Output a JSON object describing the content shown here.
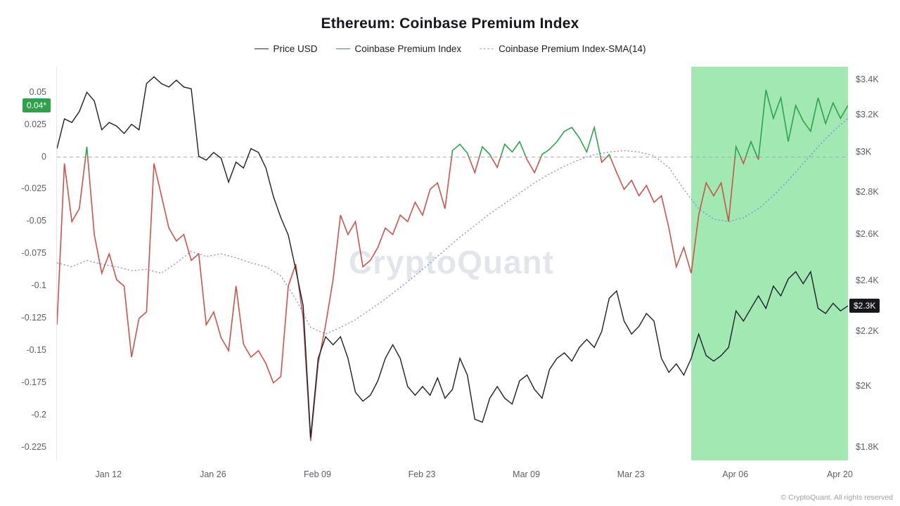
{
  "header": {
    "title": "Ethereum: Coinbase Premium Index"
  },
  "legend": {
    "items": [
      {
        "label": "Price USD",
        "color": "#2f3142",
        "dash": "solid"
      },
      {
        "label": "Coinbase Premium Index",
        "color": "#5d66d4",
        "dash": "solid"
      },
      {
        "label": "Coinbase Premium Index-SMA(14)",
        "color": "#a7abb3",
        "dash": "dashed"
      }
    ]
  },
  "watermark": "CryptoQuant",
  "footer": {
    "copyright": "© CryptoQuant. All rights reserved"
  },
  "left_axis": {
    "ticks": [
      {
        "label": "0.05",
        "value": 0.05
      },
      {
        "label": "0.025",
        "value": 0.025
      },
      {
        "label": "0",
        "value": 0
      },
      {
        "label": "-0.025",
        "value": -0.025
      },
      {
        "label": "-0.05",
        "value": -0.05
      },
      {
        "label": "-0.075",
        "value": -0.075
      },
      {
        "label": "-0.1",
        "value": -0.1
      },
      {
        "label": "-0.125",
        "value": -0.125
      },
      {
        "label": "-0.15",
        "value": -0.15
      },
      {
        "label": "-0.175",
        "value": -0.175
      },
      {
        "label": "-0.2",
        "value": -0.2
      },
      {
        "label": "-0.225",
        "value": -0.225
      }
    ],
    "badge": {
      "label": "0.04*",
      "value": 0.04,
      "bg": "#2fa14b",
      "fg": "#ffffff"
    }
  },
  "right_axis": {
    "ticks": [
      {
        "label": "$3.4K",
        "value": 3.4
      },
      {
        "label": "$3.2K",
        "value": 3.2
      },
      {
        "label": "$3K",
        "value": 3.0
      },
      {
        "label": "$2.8K",
        "value": 2.8
      },
      {
        "label": "$2.6K",
        "value": 2.6
      },
      {
        "label": "$2.4K",
        "value": 2.4
      },
      {
        "label": "$2.2K",
        "value": 2.2
      },
      {
        "label": "$2K",
        "value": 2.0
      },
      {
        "label": "$1.8K",
        "value": 1.8
      }
    ],
    "badge": {
      "label": "$2.3K",
      "value": 2.3,
      "bg": "#17181c",
      "fg": "#ffffff"
    }
  },
  "x_axis": {
    "ticks": [
      {
        "label": "Jan 12",
        "day": 7
      },
      {
        "label": "Jan 26",
        "day": 21
      },
      {
        "label": "Feb 09",
        "day": 35
      },
      {
        "label": "Feb 23",
        "day": 49
      },
      {
        "label": "Mar 09",
        "day": 63
      },
      {
        "label": "Mar 23",
        "day": 77
      },
      {
        "label": "Apr 06",
        "day": 91
      },
      {
        "label": "Apr 20",
        "day": 105
      }
    ]
  },
  "chart_data": {
    "type": "line",
    "title": "Ethereum: Coinbase Premium Index",
    "x_unit": "day index (0 = Jan 05, 106 = Apr 21)",
    "x_range": [
      0,
      106
    ],
    "left_ylim": [
      -0.235,
      0.07
    ],
    "right_ylim_kusd": [
      1.76,
      3.48
    ],
    "right_axis_scale": "log",
    "grid": false,
    "legend_position": "top-center",
    "highlight_region": {
      "start_day": 85,
      "end_day": 106,
      "color": "#97e6aa",
      "opacity": 0.9
    },
    "zero_line": {
      "value": 0,
      "color": "#a9adb3"
    },
    "series": [
      {
        "name": "Coinbase Premium Index-SMA(14)",
        "axis": "left",
        "color": "#7b80dc",
        "dash": "2 3",
        "width": 1.2,
        "x": [
          0,
          2,
          4,
          6,
          8,
          10,
          12,
          14,
          16,
          18,
          20,
          22,
          24,
          26,
          28,
          30,
          32,
          34,
          36,
          38,
          40,
          42,
          44,
          46,
          48,
          50,
          52,
          54,
          56,
          58,
          60,
          62,
          64,
          66,
          68,
          70,
          72,
          74,
          76,
          78,
          80,
          82,
          84,
          86,
          88,
          90,
          92,
          94,
          96,
          98,
          100,
          102,
          104,
          106
        ],
        "values": [
          -0.082,
          -0.085,
          -0.08,
          -0.083,
          -0.085,
          -0.088,
          -0.087,
          -0.09,
          -0.082,
          -0.073,
          -0.077,
          -0.075,
          -0.078,
          -0.082,
          -0.085,
          -0.092,
          -0.11,
          -0.132,
          -0.137,
          -0.132,
          -0.126,
          -0.118,
          -0.11,
          -0.101,
          -0.092,
          -0.082,
          -0.072,
          -0.062,
          -0.053,
          -0.044,
          -0.036,
          -0.028,
          -0.02,
          -0.013,
          -0.007,
          -0.002,
          0.002,
          0.004,
          0.005,
          0.004,
          0.001,
          -0.008,
          -0.025,
          -0.04,
          -0.048,
          -0.05,
          -0.047,
          -0.04,
          -0.03,
          -0.018,
          -0.005,
          0.008,
          0.02,
          0.03
        ]
      },
      {
        "name": "Coinbase Premium Index",
        "axis": "left",
        "split": true,
        "color_positive": "#2ca44e",
        "color_negative": "#c9544d",
        "width": 1.6,
        "values": [
          -0.13,
          -0.005,
          -0.05,
          -0.04,
          0.008,
          -0.06,
          -0.09,
          -0.075,
          -0.095,
          -0.1,
          -0.155,
          -0.125,
          -0.12,
          -0.005,
          -0.03,
          -0.055,
          -0.065,
          -0.06,
          -0.08,
          -0.075,
          -0.13,
          -0.12,
          -0.14,
          -0.15,
          -0.1,
          -0.145,
          -0.155,
          -0.15,
          -0.16,
          -0.175,
          -0.17,
          -0.1,
          -0.083,
          -0.125,
          -0.22,
          -0.16,
          -0.13,
          -0.095,
          -0.045,
          -0.06,
          -0.05,
          -0.085,
          -0.08,
          -0.07,
          -0.055,
          -0.06,
          -0.045,
          -0.05,
          -0.035,
          -0.045,
          -0.025,
          -0.02,
          -0.04,
          0.005,
          0.01,
          0.003,
          -0.012,
          0.008,
          0.002,
          -0.008,
          0.01,
          0.004,
          0.012,
          -0.002,
          -0.012,
          0.002,
          0.006,
          0.012,
          0.02,
          0.023,
          0.015,
          0.004,
          0.023,
          -0.004,
          0.002,
          -0.012,
          -0.025,
          -0.018,
          -0.03,
          -0.022,
          -0.035,
          -0.03,
          -0.055,
          -0.085,
          -0.07,
          -0.09,
          -0.045,
          -0.02,
          -0.03,
          -0.02,
          -0.05,
          0.008,
          -0.005,
          0.012,
          -0.002,
          0.052,
          0.03,
          0.046,
          0.012,
          0.04,
          0.028,
          0.02,
          0.046,
          0.026,
          0.042,
          0.03,
          0.04
        ]
      },
      {
        "name": "Price USD",
        "axis": "right",
        "color": "#1c1e29",
        "width": 1.4,
        "values": [
          3.02,
          3.18,
          3.16,
          3.22,
          3.33,
          3.28,
          3.12,
          3.16,
          3.14,
          3.1,
          3.15,
          3.12,
          3.38,
          3.42,
          3.38,
          3.36,
          3.4,
          3.36,
          3.35,
          2.98,
          2.96,
          3.0,
          2.97,
          2.85,
          2.95,
          2.92,
          3.02,
          3.0,
          2.92,
          2.78,
          2.68,
          2.6,
          2.45,
          2.3,
          1.83,
          2.1,
          2.18,
          2.15,
          2.18,
          2.1,
          1.98,
          1.95,
          1.97,
          2.02,
          2.1,
          2.15,
          2.1,
          2.0,
          1.97,
          2.0,
          1.97,
          2.03,
          1.96,
          1.99,
          2.1,
          2.04,
          1.89,
          1.88,
          1.96,
          2.0,
          1.96,
          1.94,
          2.02,
          2.04,
          1.99,
          1.96,
          2.06,
          2.1,
          2.12,
          2.09,
          2.14,
          2.17,
          2.14,
          2.2,
          2.33,
          2.36,
          2.24,
          2.19,
          2.22,
          2.27,
          2.24,
          2.1,
          2.05,
          2.08,
          2.04,
          2.1,
          2.19,
          2.11,
          2.09,
          2.11,
          2.14,
          2.28,
          2.24,
          2.29,
          2.34,
          2.29,
          2.38,
          2.34,
          2.41,
          2.44,
          2.39,
          2.44,
          2.29,
          2.27,
          2.31,
          2.28,
          2.3
        ]
      }
    ]
  }
}
